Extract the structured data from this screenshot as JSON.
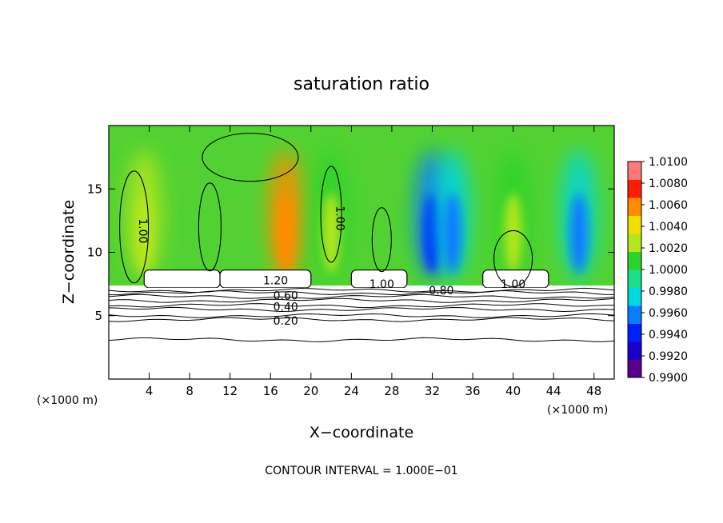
{
  "chart_data": {
    "type": "heatmap",
    "title": "saturation ratio",
    "xlabel": "X−coordinate",
    "ylabel": "Z−coordinate",
    "xlim": [
      0,
      50
    ],
    "ylim": [
      0,
      20
    ],
    "x_ticks": [
      4,
      8,
      12,
      16,
      20,
      24,
      28,
      32,
      36,
      40,
      44,
      48
    ],
    "y_ticks": [
      5,
      10,
      15
    ],
    "x_unit_left": "(×1000 m)",
    "x_unit_right": "(×1000 m)",
    "footer": "CONTOUR INTERVAL = 1.000E−01",
    "colorbar": {
      "min": 0.99,
      "max": 1.01,
      "labels": [
        "1.0100",
        "1.0080",
        "1.0060",
        "1.0040",
        "1.0020",
        "1.0000",
        "0.9980",
        "0.9960",
        "0.9940",
        "0.9920",
        "0.9900"
      ],
      "colors": [
        "#5a008c",
        "#1a00c8",
        "#0020ff",
        "#0a7cff",
        "#00d8e0",
        "#1ae08c",
        "#2ad42a",
        "#b4e61e",
        "#f0e000",
        "#ff8c00",
        "#ff1e00",
        "#ff7878"
      ]
    },
    "contour_labels": [
      {
        "text": "1.00",
        "x": 3,
        "z": 12
      },
      {
        "text": "1.00",
        "x": 22.5,
        "z": 13
      },
      {
        "text": "1.20",
        "x": 16.5,
        "z": 7.8
      },
      {
        "text": "0.60",
        "x": 17.5,
        "z": 6.6
      },
      {
        "text": "0.40",
        "x": 17.5,
        "z": 5.7
      },
      {
        "text": "0.20",
        "x": 17.5,
        "z": 4.6
      },
      {
        "text": "1.00",
        "x": 27,
        "z": 7.5
      },
      {
        "text": "0.80",
        "x": 32.9,
        "z": 7.0
      },
      {
        "text": "1.00",
        "x": 40,
        "z": 7.5
      }
    ],
    "stable_layer_contour_heights": [
      7.0,
      6.8,
      6.5,
      6.2,
      5.8,
      5.5,
      5.0,
      4.7,
      3.1
    ],
    "cloud_regions_x": [
      [
        3.5,
        11
      ],
      [
        11,
        20
      ],
      [
        24,
        29.5
      ],
      [
        37,
        43.5
      ]
    ],
    "cloud_top_z": 8.6,
    "moist_plumes": [
      {
        "x": 17.5,
        "value": 1.0065
      },
      {
        "x": 3.5,
        "value": 1.003
      },
      {
        "x": 40,
        "value": 1.002
      },
      {
        "x": 22,
        "value": 1.002
      }
    ],
    "dry_plumes": [
      {
        "x": 32,
        "value": 0.9945
      },
      {
        "x": 46.5,
        "value": 0.9955
      },
      {
        "x": 34,
        "value": 0.996
      }
    ]
  }
}
